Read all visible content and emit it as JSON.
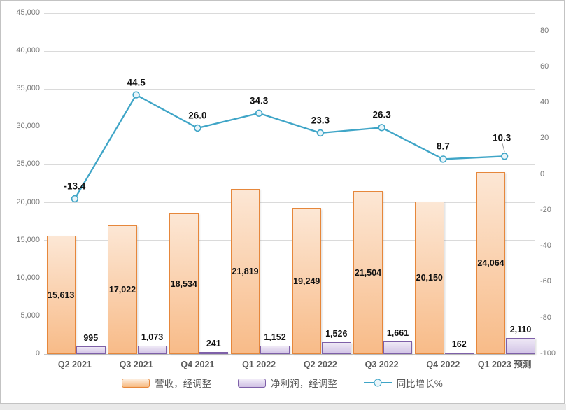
{
  "window": {
    "background": "#FFFFFF",
    "frame_border_color": "#C3C3C3",
    "bottom_strip_color": "#E9E9E9"
  },
  "chart_data": {
    "type": "combo-bar-line",
    "grid": true,
    "legend_position": "bottom",
    "categories": [
      "Q2 2021",
      "Q3 2021",
      "Q4 2021",
      "Q1 2022",
      "Q2 2022",
      "Q3 2022",
      "Q4 2022",
      "Q1 2023 预测"
    ],
    "series": [
      {
        "name": "营收，经调整",
        "chart_type": "column",
        "axis": "primary",
        "values": [
          15613,
          17022,
          18534,
          21819,
          19249,
          21504,
          20150,
          24064
        ],
        "data_labels": [
          "15,613",
          "17,022",
          "18,534",
          "21,819",
          "19,249",
          "21,504",
          "20,150",
          "24,064"
        ],
        "label_placement": "inside-center",
        "border_color": "#E6873B",
        "fill_top": "#FCE7D5",
        "fill_bottom": "#F8BB88"
      },
      {
        "name": "净利润，经调整",
        "chart_type": "column",
        "axis": "primary",
        "values": [
          995,
          1073,
          241,
          1152,
          1526,
          1661,
          162,
          2110
        ],
        "data_labels": [
          "995",
          "1,073",
          "241",
          "1,152",
          "1,526",
          "1,661",
          "162",
          "2,110"
        ],
        "label_placement": "outside-top",
        "border_color": "#7E60A8",
        "fill_top": "#EFE9F6",
        "fill_bottom": "#D2C4E6"
      },
      {
        "name": "同比增长%",
        "chart_type": "line",
        "axis": "secondary",
        "values": [
          -13.4,
          44.5,
          26.0,
          34.3,
          23.3,
          26.3,
          8.7,
          10.3
        ],
        "data_labels": [
          "-13.4",
          "44.5",
          "26.0",
          "34.3",
          "23.3",
          "26.3",
          "8.7",
          "10.3"
        ],
        "label_placement": "above",
        "line_color": "#3FA5C7",
        "marker_fill": "#E9F5FA",
        "label_offset_overrides": {
          "7": {
            "dx": -4,
            "dy": -26,
            "leader": true
          }
        },
        "leader_color": "#A0A0A0"
      }
    ],
    "primary_axis": {
      "min": 0,
      "max": 45000,
      "tick_values": [
        0,
        5000,
        10000,
        15000,
        20000,
        25000,
        30000,
        35000,
        40000,
        45000
      ],
      "tick_labels": [
        "0",
        "5,000",
        "10,000",
        "15,000",
        "20,000",
        "25,000",
        "30,000",
        "35,000",
        "40,000",
        "45,000"
      ]
    },
    "secondary_axis": {
      "min": -100,
      "max": 90,
      "tick_values": [
        -100,
        -80,
        -60,
        -40,
        -20,
        0,
        20,
        40,
        60,
        80
      ],
      "tick_labels": [
        "-100",
        "-80",
        "-60",
        "-40",
        "-20",
        "0",
        "20",
        "40",
        "60",
        "80"
      ]
    }
  },
  "legend": {
    "revenue_swatch": "revenue-series-swatch",
    "profit_swatch": "net-profit-series-swatch",
    "line_swatch": "growth-line-swatch"
  }
}
